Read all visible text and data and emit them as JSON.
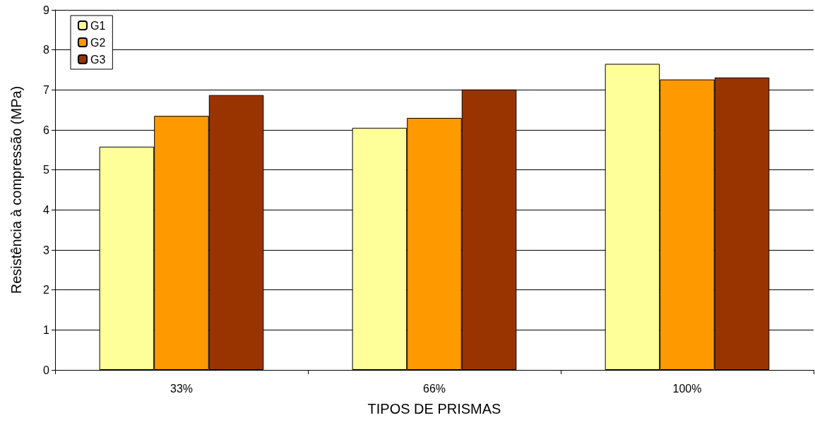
{
  "chart_data": {
    "type": "bar",
    "xlabel": "TIPOS DE PRISMAS",
    "ylabel": "Resistência à compressão (MPa)",
    "categories": [
      "33%",
      "66%",
      "100%"
    ],
    "series": [
      {
        "name": "G1",
        "color": "#ffff99",
        "values": [
          5.58,
          6.05,
          7.65
        ]
      },
      {
        "name": "G2",
        "color": "#ff9900",
        "values": [
          6.35,
          6.3,
          7.26
        ]
      },
      {
        "name": "G3",
        "color": "#993300",
        "values": [
          6.87,
          7.01,
          7.31
        ]
      }
    ],
    "ylim": [
      0,
      9
    ],
    "yticks": [
      0,
      1,
      2,
      3,
      4,
      5,
      6,
      7,
      8,
      9
    ],
    "grid": "y",
    "legend": "top left"
  }
}
